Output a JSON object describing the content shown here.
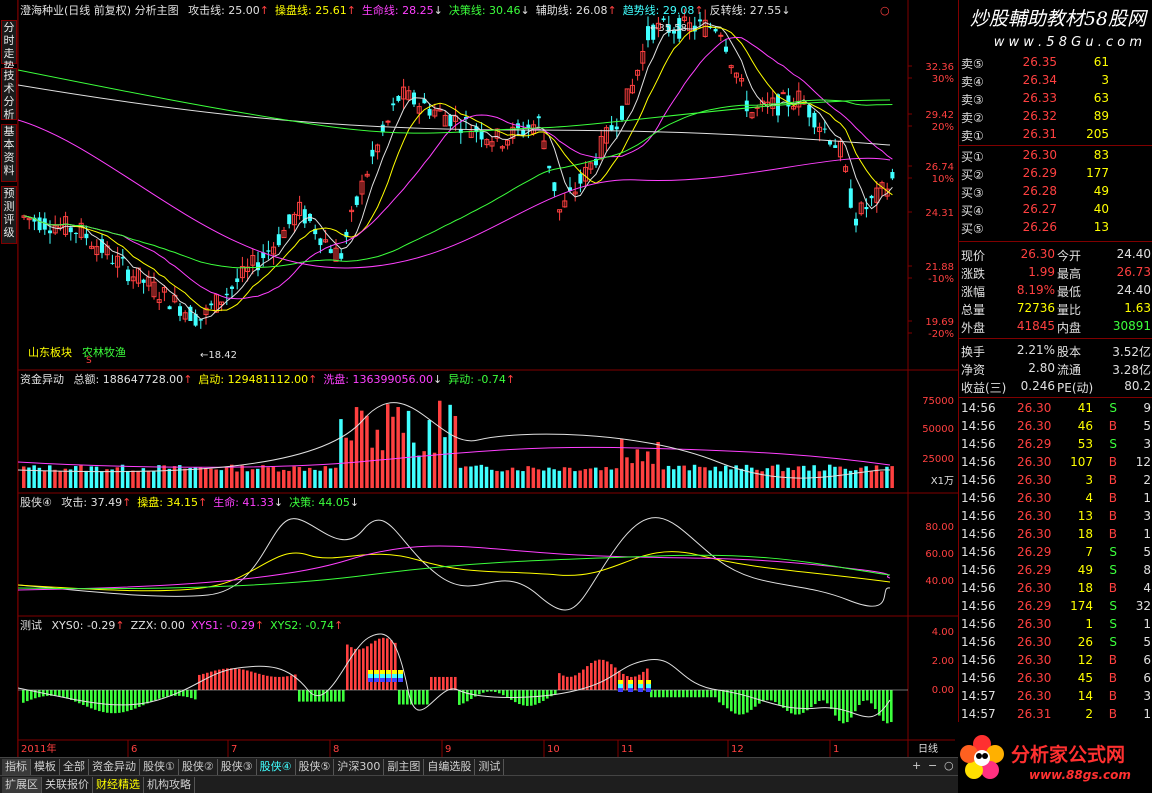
{
  "left_tabs": [
    "分时走势",
    "技术分析",
    "基本资料",
    "预测评级"
  ],
  "main_header": {
    "title": "澄海种业(日线 前复权) 分析主图",
    "items": [
      {
        "label": "攻击线: 25.00",
        "arrow": "↑",
        "color": "#e0e0e0"
      },
      {
        "label": "操盘线: 25.61",
        "arrow": "↑",
        "color": "#ffff00"
      },
      {
        "label": "生命线: 28.25",
        "arrow": "↓",
        "color": "#ff40ff"
      },
      {
        "label": "决策线: 30.46",
        "arrow": "↓",
        "color": "#3cff3c"
      },
      {
        "label": "辅助线: 26.08",
        "arrow": "↑",
        "color": "#e0e0e0"
      },
      {
        "label": "趋势线: 29.08",
        "arrow": "↑",
        "color": "#40ffff"
      },
      {
        "label": "反转线: 27.55",
        "arrow": "↓",
        "color": "#e0e0e0"
      }
    ]
  },
  "price_axis": [
    "32.36",
    "30%",
    "29.42",
    "20%",
    "26.74",
    "10%",
    "24.31",
    "21.88",
    "-10%",
    "19.69",
    "-20%"
  ],
  "price_annotations": {
    "high": "35.58",
    "low": "18.42"
  },
  "sector_labels": {
    "left": "山东板块",
    "right": "农林牧渔",
    "marker": "S"
  },
  "volume_header": {
    "title": "资金异动",
    "items": [
      {
        "label": "总额: 188647728.00",
        "arrow": "↑",
        "color": "#e0e0e0"
      },
      {
        "label": "启动: 129481112.00",
        "arrow": "↑",
        "color": "#ffff00"
      },
      {
        "label": "洗盘: 136399056.00",
        "arrow": "↓",
        "color": "#ff40ff"
      },
      {
        "label": "异动: -0.74",
        "arrow": "↑",
        "color": "#3cff3c"
      }
    ]
  },
  "volume_axis": [
    "75000",
    "50000",
    "25000",
    "X1万"
  ],
  "gu_header": {
    "title": "股侠④",
    "items": [
      {
        "label": "攻击: 37.49",
        "arrow": "↑",
        "color": "#e0e0e0"
      },
      {
        "label": "操盘: 34.15",
        "arrow": "↑",
        "color": "#ffff00"
      },
      {
        "label": "生命: 41.33",
        "arrow": "↓",
        "color": "#ff40ff"
      },
      {
        "label": "决策: 44.05",
        "arrow": "↓",
        "color": "#3cff3c"
      }
    ]
  },
  "gu_axis": [
    "80.00",
    "60.00",
    "40.00"
  ],
  "test_header": {
    "title": "测试",
    "items": [
      {
        "label": "XYS0: -0.29",
        "arrow": "↑",
        "color": "#e0e0e0"
      },
      {
        "label": "ZZX: 0.00",
        "arrow": "",
        "color": "#e0e0e0"
      },
      {
        "label": "XYS1: -0.29",
        "arrow": "↑",
        "color": "#ff40ff"
      },
      {
        "label": "XYS2: -0.74",
        "arrow": "↑",
        "color": "#3cff3c"
      }
    ]
  },
  "test_axis": [
    "4.00",
    "2.00",
    "0.00"
  ],
  "time_axis": [
    "2011年",
    "6",
    "7",
    "8",
    "9",
    "10",
    "11",
    "12",
    "1"
  ],
  "time_axis_right": "日线",
  "watermark_top": {
    "title": "炒股輔助教材58股网",
    "url": "w w w . 5 8 G u . c o m"
  },
  "watermark_bottom": {
    "title": "分析家公式网",
    "url": "www.88gs.com"
  },
  "order_book": {
    "sells": [
      {
        "label": "卖⑤",
        "price": "26.35",
        "vol": "61"
      },
      {
        "label": "卖④",
        "price": "26.34",
        "vol": "3"
      },
      {
        "label": "卖③",
        "price": "26.33",
        "vol": "63"
      },
      {
        "label": "卖②",
        "price": "26.32",
        "vol": "89"
      },
      {
        "label": "卖①",
        "price": "26.31",
        "vol": "205"
      }
    ],
    "buys": [
      {
        "label": "买①",
        "price": "26.30",
        "vol": "83"
      },
      {
        "label": "买②",
        "price": "26.29",
        "vol": "177"
      },
      {
        "label": "买③",
        "price": "26.28",
        "vol": "49"
      },
      {
        "label": "买④",
        "price": "26.27",
        "vol": "40"
      },
      {
        "label": "买⑤",
        "price": "26.26",
        "vol": "13"
      }
    ]
  },
  "quote": [
    {
      "l1": "现价",
      "v1": "26.30",
      "c1": "#ff4040",
      "l2": "今开",
      "v2": "24.40",
      "c2": "#e0e0e0"
    },
    {
      "l1": "涨跌",
      "v1": "1.99",
      "c1": "#ff4040",
      "l2": "最高",
      "v2": "26.73",
      "c2": "#ff4040"
    },
    {
      "l1": "涨幅",
      "v1": "8.19%",
      "c1": "#ff4040",
      "l2": "最低",
      "v2": "24.40",
      "c2": "#e0e0e0"
    },
    {
      "l1": "总量",
      "v1": "72736",
      "c1": "#ffff00",
      "l2": "量比",
      "v2": "1.63",
      "c2": "#ffff00"
    },
    {
      "l1": "外盘",
      "v1": "41845",
      "c1": "#ff4040",
      "l2": "内盘",
      "v2": "30891",
      "c2": "#3cff3c"
    }
  ],
  "fundamentals": [
    {
      "l1": "换手",
      "v1": "2.21%",
      "l2": "股本",
      "v2": "3.52亿"
    },
    {
      "l1": "净资",
      "v1": "2.80",
      "l2": "流通",
      "v2": "3.28亿"
    },
    {
      "l1": "收益(三)",
      "v1": "0.246",
      "l2": "PE(动)",
      "v2": "80.2"
    }
  ],
  "ticks": [
    {
      "t": "14:56",
      "p": "26.30",
      "v": "41",
      "bs": "S",
      "n": "9"
    },
    {
      "t": "14:56",
      "p": "26.30",
      "v": "46",
      "bs": "B",
      "n": "5"
    },
    {
      "t": "14:56",
      "p": "26.29",
      "v": "53",
      "bs": "S",
      "n": "3"
    },
    {
      "t": "14:56",
      "p": "26.30",
      "v": "107",
      "bs": "B",
      "n": "12"
    },
    {
      "t": "14:56",
      "p": "26.30",
      "v": "3",
      "bs": "B",
      "n": "2"
    },
    {
      "t": "14:56",
      "p": "26.30",
      "v": "4",
      "bs": "B",
      "n": "1"
    },
    {
      "t": "14:56",
      "p": "26.30",
      "v": "13",
      "bs": "B",
      "n": "3"
    },
    {
      "t": "14:56",
      "p": "26.30",
      "v": "18",
      "bs": "B",
      "n": "1"
    },
    {
      "t": "14:56",
      "p": "26.29",
      "v": "7",
      "bs": "S",
      "n": "5"
    },
    {
      "t": "14:56",
      "p": "26.29",
      "v": "49",
      "bs": "S",
      "n": "8"
    },
    {
      "t": "14:56",
      "p": "26.30",
      "v": "18",
      "bs": "B",
      "n": "4"
    },
    {
      "t": "14:56",
      "p": "26.29",
      "v": "174",
      "bs": "S",
      "n": "32"
    },
    {
      "t": "14:56",
      "p": "26.30",
      "v": "1",
      "bs": "S",
      "n": "1"
    },
    {
      "t": "14:56",
      "p": "26.30",
      "v": "26",
      "bs": "S",
      "n": "5"
    },
    {
      "t": "14:56",
      "p": "26.30",
      "v": "12",
      "bs": "B",
      "n": "6"
    },
    {
      "t": "14:56",
      "p": "26.30",
      "v": "45",
      "bs": "B",
      "n": "6"
    },
    {
      "t": "14:57",
      "p": "26.30",
      "v": "14",
      "bs": "B",
      "n": "3"
    },
    {
      "t": "14:57",
      "p": "26.31",
      "v": "2",
      "bs": "B",
      "n": "1"
    },
    {
      "t": "14:57",
      "p": "26.30",
      "v": "",
      "bs": "",
      "n": ""
    }
  ],
  "bottom_tabs": [
    "指标",
    "模板",
    "全部",
    "资金异动",
    "股侠①",
    "股侠②",
    "股侠③",
    "股侠④",
    "股侠⑤",
    "沪深300",
    "副主图",
    "自编选股",
    "测试"
  ],
  "bottom_tabs2": [
    "扩展区",
    "关联报价",
    "财经精选",
    "机构攻略"
  ],
  "colors": {
    "up": "#ff4040",
    "down": "#40ffff",
    "grid": "#800000"
  }
}
